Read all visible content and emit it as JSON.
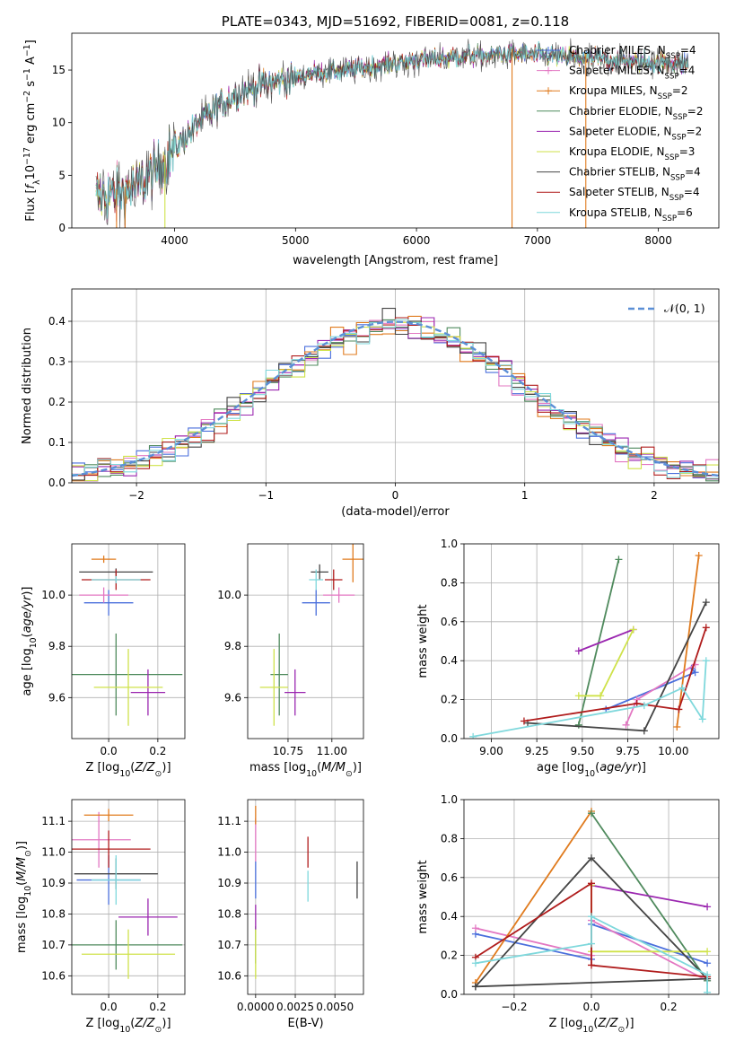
{
  "colors": {
    "chabrier_miles": "#4a6fdc",
    "salpeter_miles": "#e377c2",
    "kroupa_miles": "#e07b1e",
    "chabrier_elodie": "#4f8a5d",
    "salpeter_elodie": "#9b27b0",
    "kroupa_elodie": "#cfe24a",
    "chabrier_stelib": "#444444",
    "salpeter_stelib": "#b01c1c",
    "kroupa_stelib": "#7fd8dc",
    "gaussian": "#5b8fd6",
    "grid": "#b0b0b0"
  },
  "chart_data": [
    {
      "id": "spectrum",
      "type": "line",
      "title": "PLATE=0343, MJD=51692, FIBERID=0081, z=0.118",
      "xlabel": "wavelength [Angstrom, rest frame]",
      "ylabel": "Flux [f_λ10^-17 erg cm^-2 s^-1 A^-1]",
      "xlim": [
        3150,
        8500
      ],
      "ylim": [
        0,
        18.5
      ],
      "xticks": [
        4000,
        5000,
        6000,
        7000,
        8000
      ],
      "yticks": [
        0,
        5,
        10,
        15
      ],
      "grid": false,
      "legend_position": "upper-right",
      "continuum": [
        [
          3350,
          3.0
        ],
        [
          3550,
          3.2
        ],
        [
          3700,
          4.0
        ],
        [
          3850,
          5.5
        ],
        [
          4000,
          7.5
        ],
        [
          4200,
          10.0
        ],
        [
          4400,
          12.0
        ],
        [
          4600,
          13.2
        ],
        [
          4800,
          13.8
        ],
        [
          5000,
          14.3
        ],
        [
          5200,
          14.8
        ],
        [
          5400,
          15.0
        ],
        [
          5600,
          15.3
        ],
        [
          5800,
          15.6
        ],
        [
          6000,
          15.9
        ],
        [
          6200,
          16.1
        ],
        [
          6400,
          16.3
        ],
        [
          6600,
          16.4
        ],
        [
          6800,
          16.5
        ],
        [
          7000,
          16.4
        ],
        [
          7200,
          16.3
        ],
        [
          7400,
          16.1
        ],
        [
          7600,
          16.0
        ],
        [
          7800,
          15.8
        ],
        [
          8000,
          15.7
        ],
        [
          8250,
          15.7
        ]
      ],
      "vertical_features": [
        [
          3520,
          0
        ],
        [
          3590,
          0
        ],
        [
          3920,
          0
        ],
        [
          6790,
          0
        ],
        [
          7400,
          0
        ]
      ],
      "series": [
        {
          "name": "Chabrier MILES, N_SSP=4",
          "legend": "Chabrier MILES, N",
          "sub": "SSP",
          "suffix": "=4",
          "color_key": "chabrier_miles"
        },
        {
          "name": "Salpeter MILES, N_SSP=4",
          "legend": "Salpeter MILES, N",
          "sub": "SSP",
          "suffix": "=4",
          "color_key": "salpeter_miles"
        },
        {
          "name": "Kroupa MILES, N_SSP=2",
          "legend": "Kroupa MILES, N",
          "sub": "SSP",
          "suffix": "=2",
          "color_key": "kroupa_miles"
        },
        {
          "name": "Chabrier ELODIE, N_SSP=2",
          "legend": "Chabrier ELODIE, N",
          "sub": "SSP",
          "suffix": "=2",
          "color_key": "chabrier_elodie"
        },
        {
          "name": "Salpeter ELODIE, N_SSP=2",
          "legend": "Salpeter ELODIE, N",
          "sub": "SSP",
          "suffix": "=2",
          "color_key": "salpeter_elodie"
        },
        {
          "name": "Kroupa ELODIE, N_SSP=3",
          "legend": "Kroupa ELODIE, N",
          "sub": "SSP",
          "suffix": "=3",
          "color_key": "kroupa_elodie"
        },
        {
          "name": "Chabrier STELIB, N_SSP=4",
          "legend": "Chabrier STELIB, N",
          "sub": "SSP",
          "suffix": "=4",
          "color_key": "chabrier_stelib"
        },
        {
          "name": "Salpeter STELIB, N_SSP=4",
          "legend": "Salpeter STELIB, N",
          "sub": "SSP",
          "suffix": "=4",
          "color_key": "salpeter_stelib"
        },
        {
          "name": "Kroupa STELIB, N_SSP=6",
          "legend": "Kroupa STELIB, N",
          "sub": "SSP",
          "suffix": "=6",
          "color_key": "kroupa_stelib"
        }
      ]
    },
    {
      "id": "residuals",
      "type": "histogram",
      "xlabel": "(data-model)/error",
      "ylabel": "Normed distribution",
      "xlim": [
        -2.5,
        2.5
      ],
      "ylim": [
        0,
        0.48
      ],
      "xticks": [
        -2,
        -1,
        0,
        1,
        2
      ],
      "yticks": [
        0.0,
        0.1,
        0.2,
        0.3,
        0.4
      ],
      "grid": true,
      "legend_position": "upper-right",
      "legend_label": "𝒩(0, 1)",
      "bin_width": 0.1
    },
    {
      "id": "age_vs_Z",
      "type": "errorbar",
      "xlabel": "Z [log10(Z/Z⊙)]",
      "ylabel": "age  [log10(age/yr)]",
      "xlim": [
        -0.15,
        0.31
      ],
      "ylim": [
        9.44,
        10.2
      ],
      "xticks": [
        0.0,
        0.2
      ],
      "yticks": [
        9.6,
        9.8,
        10.0
      ],
      "grid": true,
      "points": [
        {
          "color_key": "chabrier_miles",
          "x": 0.0,
          "y": 9.97,
          "xerr": 0.1,
          "yerr": 0.05
        },
        {
          "color_key": "salpeter_miles",
          "x": -0.02,
          "y": 10.0,
          "xerr": 0.1,
          "yerr": 0.03
        },
        {
          "color_key": "kroupa_miles",
          "x": -0.02,
          "y": 10.14,
          "xerr": 0.05,
          "yerr": 0.0
        },
        {
          "color_key": "chabrier_elodie",
          "x": 0.03,
          "y": 9.69,
          "xerr": 0.27,
          "yerr": 0.16
        },
        {
          "color_key": "salpeter_elodie",
          "x": 0.16,
          "y": 9.62,
          "xerr": 0.07,
          "yerr": 0.09
        },
        {
          "color_key": "kroupa_elodie",
          "x": 0.08,
          "y": 9.64,
          "xerr": 0.14,
          "yerr": 0.15
        },
        {
          "color_key": "chabrier_stelib",
          "x": 0.03,
          "y": 10.09,
          "xerr": 0.15,
          "yerr": 0.0
        },
        {
          "color_key": "salpeter_stelib",
          "x": 0.03,
          "y": 10.06,
          "xerr": 0.14,
          "yerr": 0.04
        },
        {
          "color_key": "kroupa_stelib",
          "x": 0.03,
          "y": 10.06,
          "xerr": 0.1,
          "yerr": 0.0
        }
      ]
    },
    {
      "id": "age_vs_mass",
      "type": "errorbar",
      "xlabel": "mass [log10(M/M⊙)]",
      "ylabel": "",
      "xlim": [
        10.52,
        11.18
      ],
      "ylim": [
        9.44,
        10.2
      ],
      "xticks": [
        10.75,
        11.0
      ],
      "yticks": [
        9.6,
        9.8,
        10.0
      ],
      "grid": true,
      "points": [
        {
          "color_key": "chabrier_miles",
          "x": 10.91,
          "y": 9.97,
          "xerr": 0.08,
          "yerr": 0.05
        },
        {
          "color_key": "salpeter_miles",
          "x": 11.04,
          "y": 10.0,
          "xerr": 0.09,
          "yerr": 0.03
        },
        {
          "color_key": "kroupa_miles",
          "x": 11.12,
          "y": 10.14,
          "xerr": 0.06,
          "yerr": 0.09
        },
        {
          "color_key": "chabrier_elodie",
          "x": 10.7,
          "y": 9.69,
          "xerr": 0.05,
          "yerr": 0.16
        },
        {
          "color_key": "salpeter_elodie",
          "x": 10.79,
          "y": 9.62,
          "xerr": 0.06,
          "yerr": 0.09
        },
        {
          "color_key": "kroupa_elodie",
          "x": 10.67,
          "y": 9.64,
          "xerr": 0.08,
          "yerr": 0.15
        },
        {
          "color_key": "chabrier_stelib",
          "x": 10.93,
          "y": 10.09,
          "xerr": 0.05,
          "yerr": 0.03
        },
        {
          "color_key": "salpeter_stelib",
          "x": 11.01,
          "y": 10.06,
          "xerr": 0.05,
          "yerr": 0.04
        },
        {
          "color_key": "kroupa_stelib",
          "x": 10.91,
          "y": 10.06,
          "xerr": 0.04,
          "yerr": 0.04
        }
      ]
    },
    {
      "id": "massweight_vs_age",
      "type": "line",
      "xlabel": "age  [log10(age/yr)]",
      "ylabel": "mass weight",
      "xlim": [
        8.85,
        10.25
      ],
      "ylim": [
        0,
        1.0
      ],
      "xticks": [
        9.0,
        9.25,
        9.5,
        9.75,
        10.0
      ],
      "yticks": [
        0.0,
        0.2,
        0.4,
        0.6,
        0.8,
        1.0
      ],
      "grid": true,
      "series": [
        {
          "color_key": "chabrier_miles",
          "x": [
            9.63,
            10.12,
            10.1
          ],
          "y": [
            0.15,
            0.34,
            0.36
          ]
        },
        {
          "color_key": "salpeter_miles",
          "x": [
            9.74,
            9.8,
            10.12
          ],
          "y": [
            0.07,
            0.2,
            0.38
          ]
        },
        {
          "color_key": "kroupa_miles",
          "x": [
            10.02,
            10.14
          ],
          "y": [
            0.06,
            0.94
          ]
        },
        {
          "color_key": "chabrier_elodie",
          "x": [
            9.48,
            9.7
          ],
          "y": [
            0.07,
            0.92
          ]
        },
        {
          "color_key": "salpeter_elodie",
          "x": [
            9.48,
            9.78
          ],
          "y": [
            0.45,
            0.56
          ]
        },
        {
          "color_key": "kroupa_elodie",
          "x": [
            9.48,
            9.6,
            9.78
          ],
          "y": [
            0.22,
            0.22,
            0.56
          ]
        },
        {
          "color_key": "chabrier_stelib",
          "x": [
            9.2,
            9.84,
            10.18
          ],
          "y": [
            0.08,
            0.04,
            0.7
          ]
        },
        {
          "color_key": "salpeter_stelib",
          "x": [
            9.18,
            9.8,
            10.03,
            10.18
          ],
          "y": [
            0.09,
            0.18,
            0.15,
            0.57
          ]
        },
        {
          "color_key": "kroupa_stelib",
          "x": [
            8.9,
            9.84,
            10.05,
            10.16,
            10.18
          ],
          "y": [
            0.01,
            0.17,
            0.26,
            0.1,
            0.4
          ]
        }
      ]
    },
    {
      "id": "mass_vs_Z",
      "type": "errorbar",
      "xlabel": "Z [log10(Z/Z⊙)]",
      "ylabel": "mass [log10(M/M⊙)]",
      "xlim": [
        -0.15,
        0.31
      ],
      "ylim": [
        10.54,
        11.17
      ],
      "xticks": [
        0.0,
        0.2
      ],
      "yticks": [
        10.6,
        10.7,
        10.8,
        10.9,
        11.0,
        11.1
      ],
      "grid": true,
      "points": [
        {
          "color_key": "chabrier_miles",
          "x": 0.0,
          "y": 10.91,
          "xerr": 0.13,
          "yerr": 0.08
        },
        {
          "color_key": "salpeter_miles",
          "x": -0.04,
          "y": 11.04,
          "xerr": 0.13,
          "yerr": 0.09
        },
        {
          "color_key": "kroupa_miles",
          "x": 0.0,
          "y": 11.12,
          "xerr": 0.1,
          "yerr": 0.02
        },
        {
          "color_key": "chabrier_elodie",
          "x": 0.03,
          "y": 10.7,
          "xerr": 0.27,
          "yerr": 0.08
        },
        {
          "color_key": "salpeter_elodie",
          "x": 0.16,
          "y": 10.79,
          "xerr": 0.12,
          "yerr": 0.06
        },
        {
          "color_key": "kroupa_elodie",
          "x": 0.08,
          "y": 10.67,
          "xerr": 0.19,
          "yerr": 0.08
        },
        {
          "color_key": "chabrier_stelib",
          "x": 0.03,
          "y": 10.93,
          "xerr": 0.17,
          "yerr": 0.05
        },
        {
          "color_key": "salpeter_stelib",
          "x": 0.0,
          "y": 11.01,
          "xerr": 0.17,
          "yerr": 0.06
        },
        {
          "color_key": "kroupa_stelib",
          "x": 0.03,
          "y": 10.91,
          "xerr": 0.1,
          "yerr": 0.08
        }
      ]
    },
    {
      "id": "mass_vs_ebv",
      "type": "errorbar",
      "xlabel": "E(B-V)",
      "ylabel": "",
      "xlim": [
        -0.0005,
        0.0068
      ],
      "ylim": [
        10.54,
        11.17
      ],
      "xticks": [
        0.0,
        0.0025,
        0.005
      ],
      "xticklabels": [
        "0.0000",
        "0.0025",
        "0.0050"
      ],
      "yticks": [
        10.6,
        10.7,
        10.8,
        10.9,
        11.0,
        11.1
      ],
      "grid": true,
      "points": [
        {
          "color_key": "chabrier_miles",
          "x": 0.0,
          "y": 10.91,
          "xerr": 0,
          "yerr": 0.06
        },
        {
          "color_key": "salpeter_miles",
          "x": 0.0,
          "y": 11.04,
          "xerr": 0,
          "yerr": 0.07
        },
        {
          "color_key": "kroupa_miles",
          "x": 0.0,
          "y": 11.12,
          "xerr": 0,
          "yerr": 0.03
        },
        {
          "color_key": "chabrier_elodie",
          "x": 0.0,
          "y": 10.7,
          "xerr": 0,
          "yerr": 0.06
        },
        {
          "color_key": "salpeter_elodie",
          "x": 0.0,
          "y": 10.79,
          "xerr": 0,
          "yerr": 0.04
        },
        {
          "color_key": "kroupa_elodie",
          "x": 0.0,
          "y": 10.67,
          "xerr": 0,
          "yerr": 0.08
        },
        {
          "color_key": "chabrier_stelib",
          "x": 0.0064,
          "y": 10.91,
          "xerr": 0,
          "yerr": 0.06
        },
        {
          "color_key": "salpeter_stelib",
          "x": 0.0033,
          "y": 11.0,
          "xerr": 0,
          "yerr": 0.05
        },
        {
          "color_key": "kroupa_stelib",
          "x": 0.0033,
          "y": 10.89,
          "xerr": 0,
          "yerr": 0.05
        }
      ]
    },
    {
      "id": "massweight_vs_Z",
      "type": "line",
      "xlabel": "Z [log10(Z/Z⊙)]",
      "ylabel": "mass weight",
      "xlim": [
        -0.33,
        0.33
      ],
      "ylim": [
        0,
        1.0
      ],
      "xticks": [
        -0.2,
        0.0,
        0.2
      ],
      "yticks": [
        0.0,
        0.2,
        0.4,
        0.6,
        0.8,
        1.0
      ],
      "grid": true,
      "series": [
        {
          "color_key": "chabrier_miles",
          "x": [
            -0.3,
            0.0,
            0.0,
            0.3
          ],
          "y": [
            0.31,
            0.18,
            0.36,
            0.16
          ]
        },
        {
          "color_key": "salpeter_miles",
          "x": [
            -0.3,
            0.0,
            0.0,
            0.3
          ],
          "y": [
            0.34,
            0.2,
            0.38,
            0.07
          ]
        },
        {
          "color_key": "kroupa_miles",
          "x": [
            -0.3,
            0.0
          ],
          "y": [
            0.06,
            0.94
          ]
        },
        {
          "color_key": "chabrier_elodie",
          "x": [
            0.0,
            0.3
          ],
          "y": [
            0.93,
            0.07
          ]
        },
        {
          "color_key": "salpeter_elodie",
          "x": [
            0.0,
            0.3
          ],
          "y": [
            0.56,
            0.45
          ]
        },
        {
          "color_key": "kroupa_elodie",
          "x": [
            0.0,
            0.0,
            0.3
          ],
          "y": [
            0.56,
            0.22,
            0.22
          ]
        },
        {
          "color_key": "chabrier_stelib",
          "x": [
            -0.3,
            0.0,
            0.3,
            -0.3
          ],
          "y": [
            0.04,
            0.7,
            0.08,
            0.04
          ]
        },
        {
          "color_key": "salpeter_stelib",
          "x": [
            -0.3,
            0.0,
            0.0,
            0.3
          ],
          "y": [
            0.19,
            0.57,
            0.15,
            0.09
          ]
        },
        {
          "color_key": "kroupa_stelib",
          "x": [
            -0.3,
            0.0,
            0.0,
            0.3,
            0.3
          ],
          "y": [
            0.16,
            0.26,
            0.4,
            0.1,
            0.01
          ]
        }
      ]
    }
  ]
}
